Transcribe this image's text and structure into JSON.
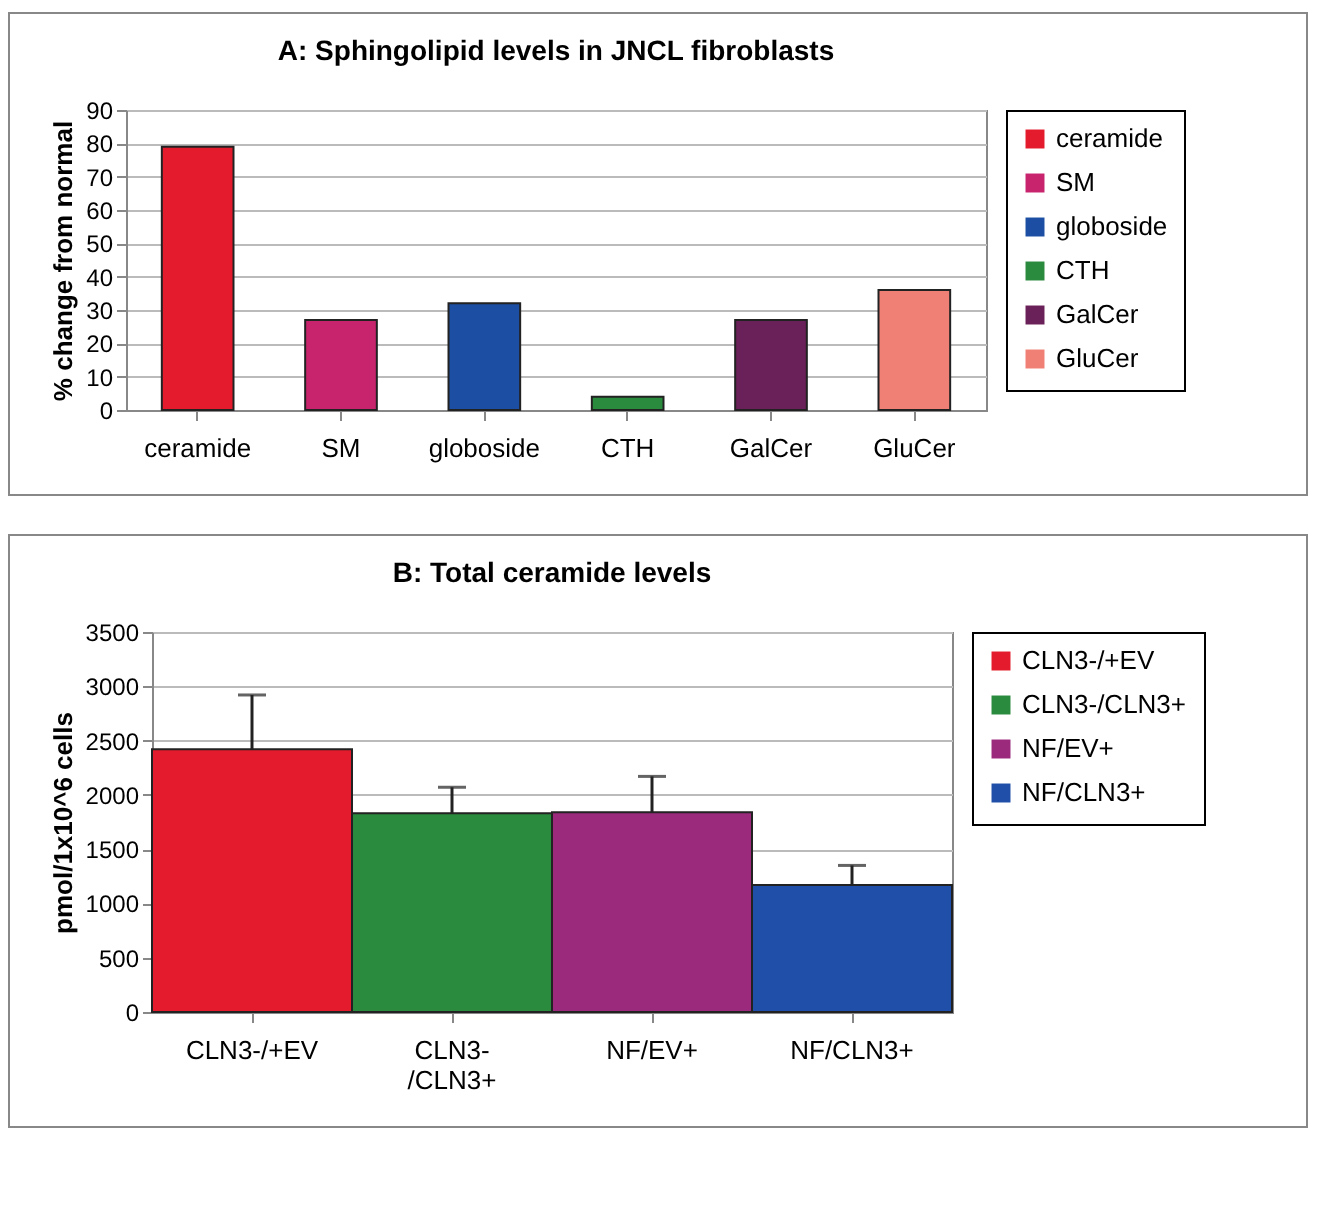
{
  "chart_data": [
    {
      "type": "bar",
      "title": "A: Sphingolipid levels in JNCL fibroblasts",
      "ylabel": "% change from normal",
      "categories": [
        "ceramide",
        "SM",
        "globoside",
        "CTH",
        "GalCer",
        "GluCer"
      ],
      "stacked": true,
      "series": [
        {
          "name": "ceramide",
          "color": "#e41b2c",
          "values": [
            79,
            null,
            null,
            null,
            null,
            null
          ]
        },
        {
          "name": "SM",
          "color": "#c8246e",
          "values": [
            null,
            27,
            null,
            null,
            null,
            null
          ]
        },
        {
          "name": "globoside",
          "color": "#1c4fa3",
          "values": [
            null,
            null,
            32,
            null,
            null,
            null
          ]
        },
        {
          "name": "CTH",
          "color": "#2a8a3e",
          "values": [
            null,
            null,
            null,
            4,
            null,
            null
          ]
        },
        {
          "name": "GalCer",
          "color": "#6a2058",
          "values": [
            null,
            null,
            null,
            null,
            27,
            null
          ]
        },
        {
          "name": "GluCer",
          "color": "#f08075",
          "values": [
            null,
            null,
            null,
            null,
            null,
            36
          ]
        }
      ],
      "ylim": [
        0,
        90
      ],
      "yticks": [
        0,
        10,
        20,
        30,
        40,
        50,
        60,
        70,
        80,
        90
      ],
      "grid": "y",
      "legend": "right"
    },
    {
      "type": "bar",
      "title": "B: Total ceramide levels",
      "ylabel": "pmol/1x10^6 cells",
      "categories": [
        "CLN3-/+EV",
        "CLN3-/CLN3+",
        "NF/EV+",
        "NF/CLN3+"
      ],
      "stacked": true,
      "series": [
        {
          "name": "CLN3-/+EV",
          "color": "#e41b2c",
          "values": [
            2420,
            null,
            null,
            null
          ],
          "errors": [
            500,
            null,
            null,
            null
          ]
        },
        {
          "name": "CLN3-/CLN3+",
          "color": "#2a8a3e",
          "values": [
            null,
            1830,
            null,
            null
          ],
          "errors": [
            null,
            240,
            null,
            null
          ]
        },
        {
          "name": "NF/EV+",
          "color": "#9b2a7c",
          "values": [
            null,
            null,
            1840,
            null
          ],
          "errors": [
            null,
            null,
            330,
            null
          ]
        },
        {
          "name": "NF/CLN3+",
          "color": "#1f4fa8",
          "values": [
            null,
            null,
            null,
            1170
          ],
          "errors": [
            null,
            null,
            null,
            180
          ]
        }
      ],
      "ylim": [
        0,
        3500
      ],
      "yticks": [
        0,
        500,
        1000,
        1500,
        2000,
        2500,
        3000,
        3500
      ],
      "grid": "y",
      "legend": "right"
    }
  ]
}
